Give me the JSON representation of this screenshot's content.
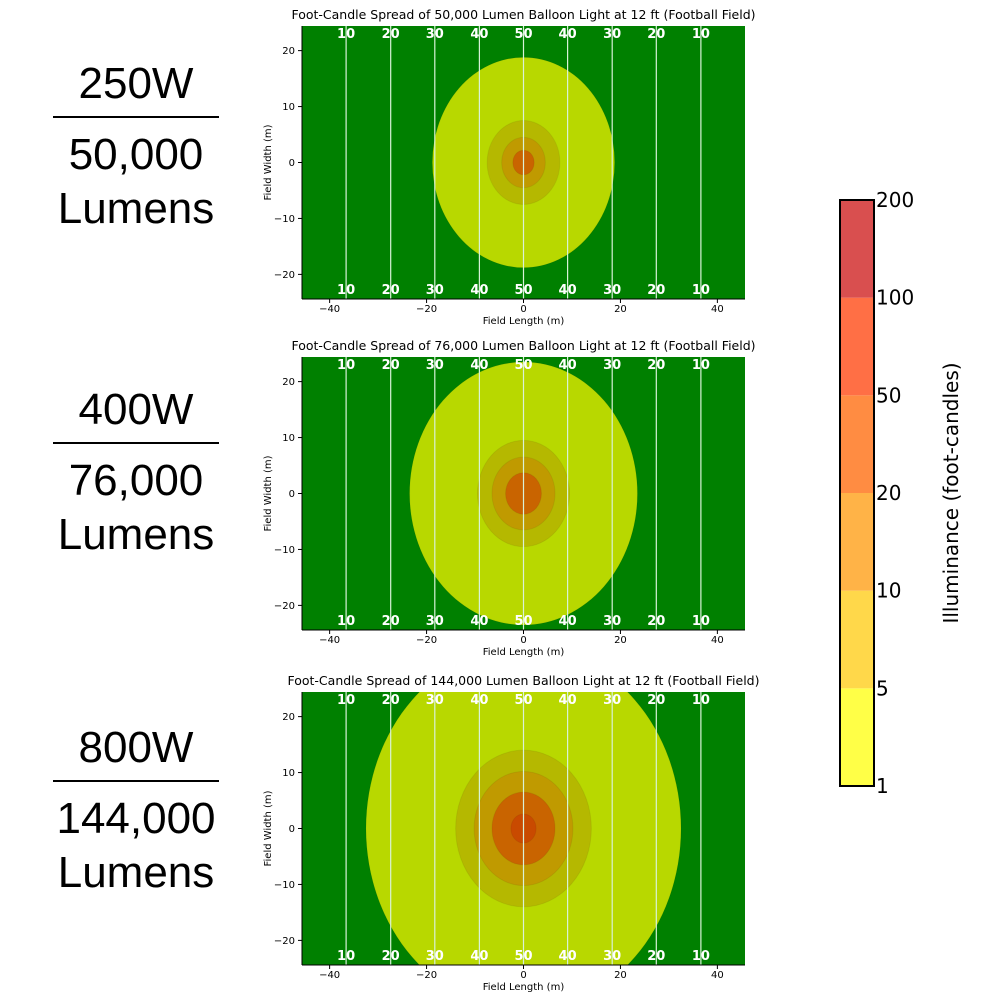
{
  "panels": [
    {
      "watts": "250W",
      "lumens_line1": "50,000",
      "lumens_line2": "Lumens"
    },
    {
      "watts": "400W",
      "lumens_line1": "76,000",
      "lumens_line2": "Lumens"
    },
    {
      "watts": "800W",
      "lumens_line1": "144,000",
      "lumens_line2": "Lumens"
    }
  ],
  "colors": {
    "field": "#008000",
    "yard_line": "#d9f2d9",
    "yard_number": "#ffffff",
    "levels": [
      "#ffff47",
      "#ffd84a",
      "#ffb347",
      "#ff8c42",
      "#ff6f45",
      "#d94f4f"
    ]
  },
  "chart_data": [
    {
      "type": "heatmap",
      "title": "Foot-Candle Spread of 50,000 Lumen Balloon Light at 12 ft (Football Field)",
      "xlabel": "Field Length (m)",
      "ylabel": "Field Width (m)",
      "xlim": [
        -45.7,
        45.7
      ],
      "ylim": [
        -24.4,
        24.4
      ],
      "xticks": [
        -40,
        -20,
        0,
        20,
        40
      ],
      "yticks": [
        -20,
        -10,
        0,
        10,
        20
      ],
      "xtick_labels": [
        "−40",
        "−20",
        "0",
        "20",
        "40"
      ],
      "ytick_labels": [
        "−20",
        "−10",
        "0",
        "10",
        "20"
      ],
      "yard_lines_x": [
        -36.6,
        -27.4,
        -18.3,
        -9.1,
        0,
        9.1,
        18.3,
        27.4,
        36.6
      ],
      "yard_numbers": [
        "10",
        "20",
        "30",
        "40",
        "50",
        "40",
        "30",
        "20",
        "10"
      ],
      "contours": [
        {
          "level": "1-5",
          "rx": 18.8,
          "ry": 18.8,
          "color": "#b8d800"
        },
        {
          "level": "5-10",
          "rx": 7.5,
          "ry": 7.5,
          "color": "#b5b800"
        },
        {
          "level": "10-20",
          "rx": 4.5,
          "ry": 4.5,
          "color": "#c09a00"
        },
        {
          "level": "20-50",
          "rx": 2.2,
          "ry": 2.2,
          "color": "#c96400"
        }
      ]
    },
    {
      "type": "heatmap",
      "title": "Foot-Candle Spread of 76,000 Lumen Balloon Light at 12 ft (Football Field)",
      "xlabel": "Field Length (m)",
      "ylabel": "Field Width (m)",
      "xlim": [
        -45.7,
        45.7
      ],
      "ylim": [
        -24.4,
        24.4
      ],
      "xticks": [
        -40,
        -20,
        0,
        20,
        40
      ],
      "yticks": [
        -20,
        -10,
        0,
        10,
        20
      ],
      "xtick_labels": [
        "−40",
        "−20",
        "0",
        "20",
        "40"
      ],
      "ytick_labels": [
        "−20",
        "−10",
        "0",
        "10",
        "20"
      ],
      "yard_lines_x": [
        -36.6,
        -27.4,
        -18.3,
        -9.1,
        0,
        9.1,
        18.3,
        27.4,
        36.6
      ],
      "yard_numbers": [
        "10",
        "20",
        "30",
        "40",
        "50",
        "40",
        "30",
        "20",
        "10"
      ],
      "contours": [
        {
          "level": "1-5",
          "rx": 23.5,
          "ry": 23.5,
          "color": "#b8d800"
        },
        {
          "level": "5-10",
          "rx": 9.5,
          "ry": 9.5,
          "color": "#b5b800"
        },
        {
          "level": "10-20",
          "rx": 6.5,
          "ry": 6.5,
          "color": "#c09a00"
        },
        {
          "level": "20-50",
          "rx": 3.7,
          "ry": 3.7,
          "color": "#c96400"
        }
      ]
    },
    {
      "type": "heatmap",
      "title": "Foot-Candle Spread of 144,000 Lumen Balloon Light at 12 ft (Football Field)",
      "xlabel": "Field Length (m)",
      "ylabel": "Field Width (m)",
      "xlim": [
        -45.7,
        45.7
      ],
      "ylim": [
        -24.4,
        24.4
      ],
      "xticks": [
        -40,
        -20,
        0,
        20,
        40
      ],
      "yticks": [
        -20,
        -10,
        0,
        10,
        20
      ],
      "xtick_labels": [
        "−40",
        "−20",
        "0",
        "20",
        "40"
      ],
      "ytick_labels": [
        "−20",
        "−10",
        "0",
        "10",
        "20"
      ],
      "yard_lines_x": [
        -36.6,
        -27.4,
        -18.3,
        -9.1,
        0,
        9.1,
        18.3,
        27.4,
        36.6
      ],
      "yard_numbers": [
        "10",
        "20",
        "30",
        "40",
        "50",
        "40",
        "30",
        "20",
        "10"
      ],
      "contours": [
        {
          "level": "1-5",
          "rx": 32.5,
          "ry": 32.5,
          "color": "#b8d800"
        },
        {
          "level": "5-10",
          "rx": 14,
          "ry": 14,
          "color": "#b5b800"
        },
        {
          "level": "10-20",
          "rx": 10.2,
          "ry": 10.2,
          "color": "#c09a00"
        },
        {
          "level": "20-50",
          "rx": 6.5,
          "ry": 6.5,
          "color": "#c96400"
        },
        {
          "level": "50-100",
          "rx": 2.6,
          "ry": 2.6,
          "color": "#c94a00"
        }
      ]
    },
    {
      "type": "colorbar",
      "label": "Illuminance (foot-candles)",
      "ticks": [
        "1",
        "5",
        "10",
        "20",
        "50",
        "100",
        "200"
      ]
    }
  ]
}
